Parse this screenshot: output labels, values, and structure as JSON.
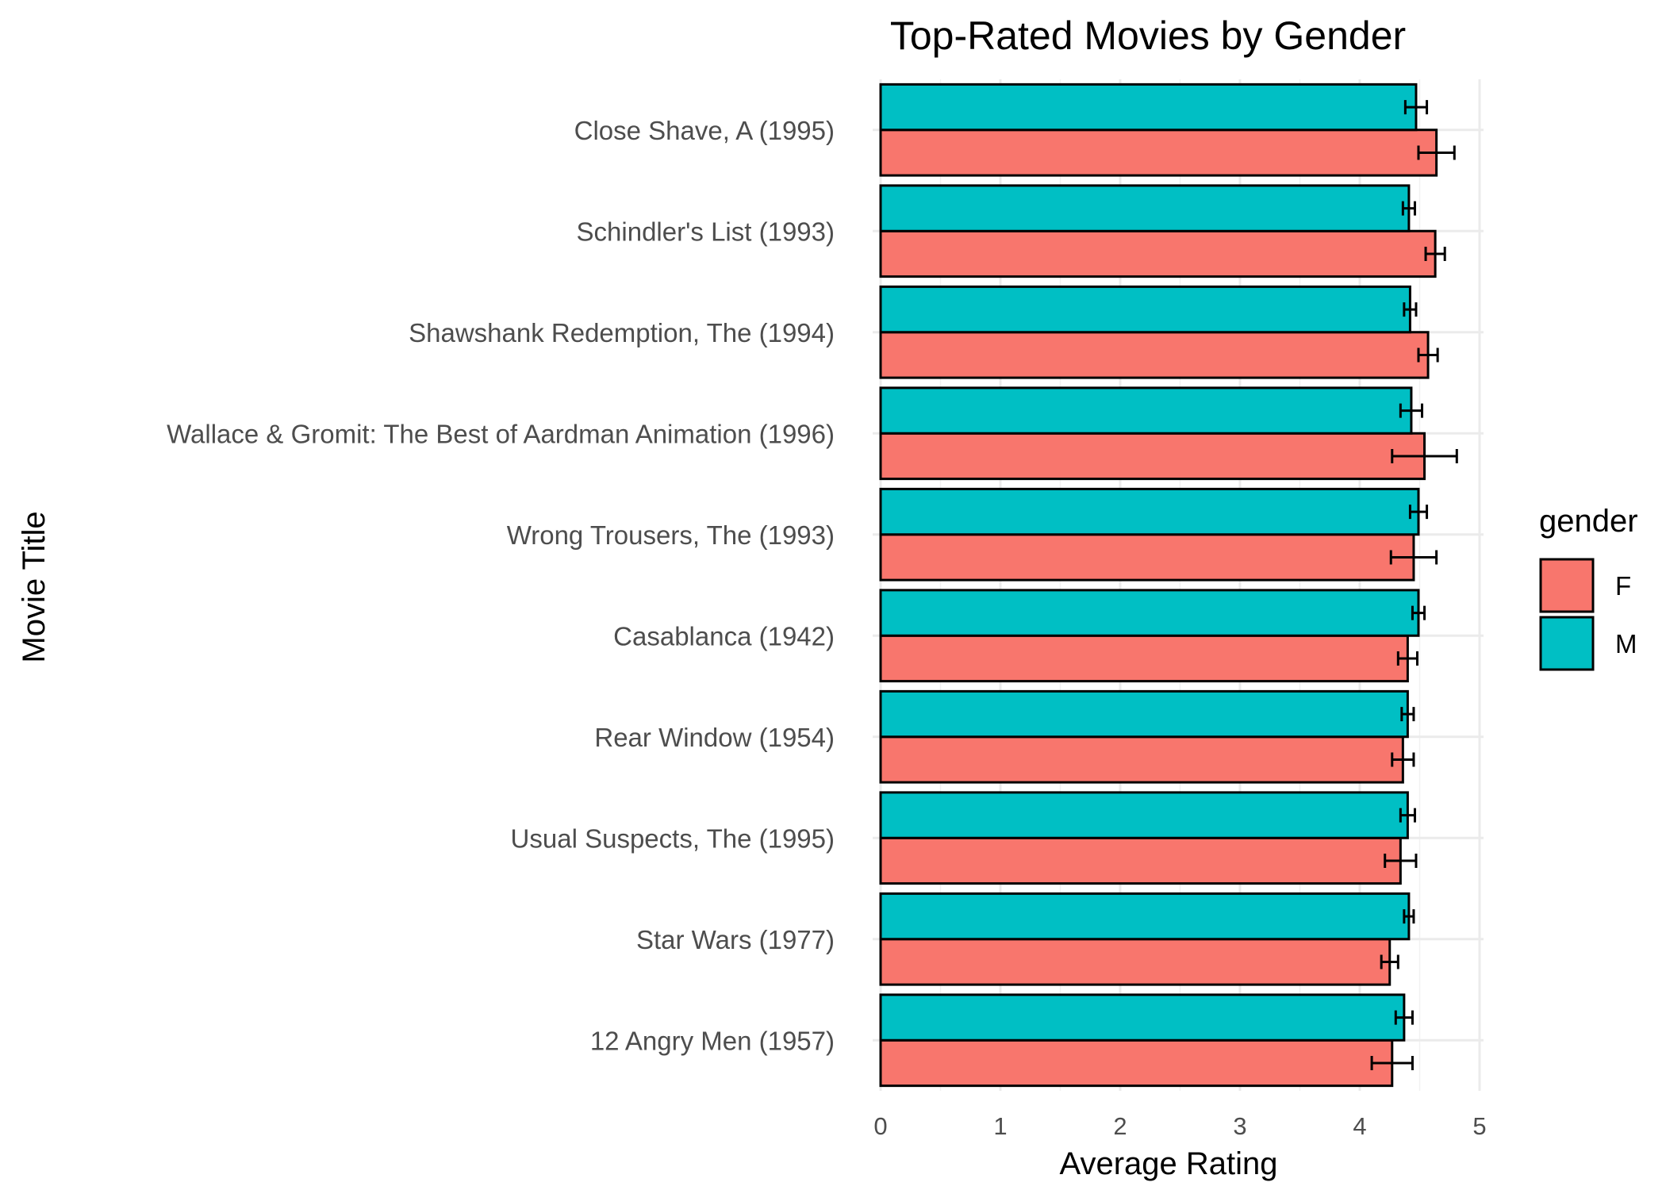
{
  "chart_data": {
    "type": "bar",
    "orientation": "horizontal",
    "title": "Top-Rated Movies by Gender",
    "xlabel": "Average Rating",
    "ylabel": "Movie Title",
    "xlim": [
      0,
      5
    ],
    "xticks": [
      0,
      1,
      2,
      3,
      4,
      5
    ],
    "grid": true,
    "legend": {
      "title": "gender",
      "position": "right"
    },
    "categories": [
      "Close Shave, A (1995)",
      "Schindler's List (1993)",
      "Shawshank Redemption, The (1994)",
      "Wallace & Gromit: The Best of Aardman Animation (1996)",
      "Wrong Trousers, The (1993)",
      "Casablanca (1942)",
      "Rear Window (1954)",
      "Usual Suspects, The (1995)",
      "Star Wars (1977)",
      "12 Angry Men (1957)"
    ],
    "series": [
      {
        "name": "F",
        "color": "#F8766D",
        "values": [
          4.64,
          4.63,
          4.57,
          4.54,
          4.45,
          4.4,
          4.36,
          4.34,
          4.25,
          4.27
        ],
        "err_low": [
          4.49,
          4.55,
          4.49,
          4.27,
          4.26,
          4.32,
          4.27,
          4.21,
          4.18,
          4.1
        ],
        "err_high": [
          4.79,
          4.71,
          4.65,
          4.81,
          4.64,
          4.48,
          4.45,
          4.47,
          4.32,
          4.44
        ]
      },
      {
        "name": "M",
        "color": "#00BFC4",
        "values": [
          4.47,
          4.41,
          4.42,
          4.43,
          4.49,
          4.49,
          4.4,
          4.4,
          4.41,
          4.37
        ],
        "err_low": [
          4.38,
          4.36,
          4.37,
          4.34,
          4.42,
          4.44,
          4.35,
          4.34,
          4.37,
          4.3
        ],
        "err_high": [
          4.56,
          4.46,
          4.47,
          4.52,
          4.56,
          4.54,
          4.45,
          4.46,
          4.45,
          4.44
        ]
      }
    ]
  }
}
